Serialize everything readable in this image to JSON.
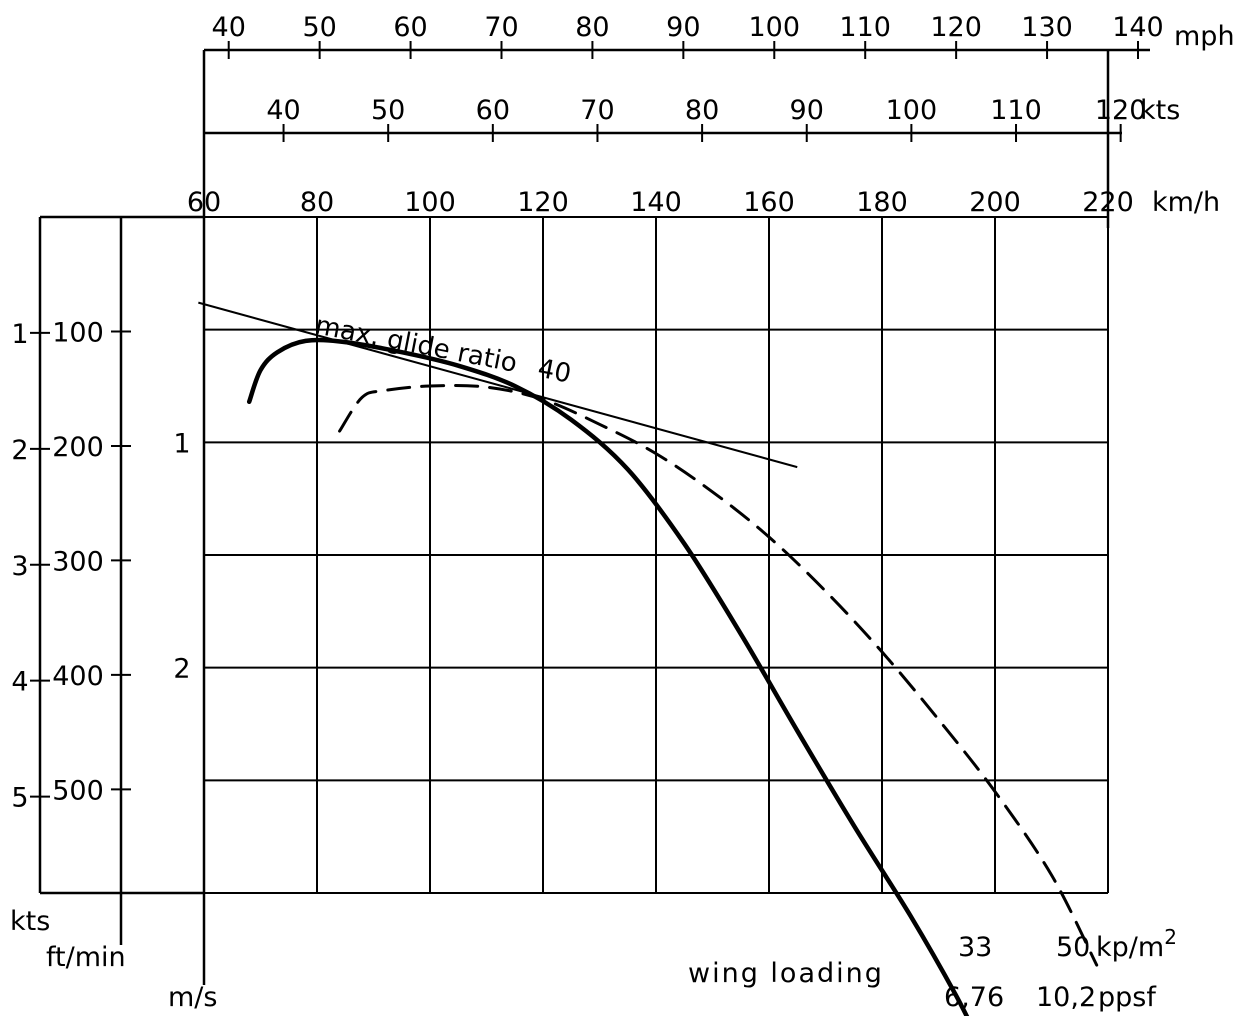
{
  "chart_data": {
    "type": "line",
    "title": "",
    "mph_axis": {
      "ticks": [
        "40",
        "50",
        "60",
        "70",
        "80",
        "90",
        "100",
        "110",
        "120",
        "130",
        "140"
      ],
      "unit": "mph"
    },
    "kts_axis": {
      "ticks": [
        "40",
        "50",
        "60",
        "70",
        "80",
        "90",
        "100",
        "110",
        "120"
      ],
      "unit": "kts"
    },
    "kmh_axis": {
      "ticks": [
        "60",
        "80",
        "100",
        "120",
        "140",
        "160",
        "180",
        "200",
        "220"
      ],
      "unit": "km/h",
      "range": [
        60,
        220
      ]
    },
    "left_axes": {
      "kts": {
        "ticks": [
          "1",
          "2",
          "3",
          "4",
          "5"
        ],
        "unit": "kts"
      },
      "ftmin": {
        "ticks": [
          "100",
          "200",
          "300",
          "400",
          "500"
        ],
        "unit": "ft/min"
      },
      "ms": {
        "ticks": [
          "1",
          "2"
        ],
        "unit": "m/s"
      }
    },
    "y_range_ms": [
      0,
      3.0
    ],
    "glide_line": {
      "label": "max. glide ratio",
      "value_label": "40",
      "points": [
        [
          59,
          0.38
        ],
        [
          165,
          1.11
        ]
      ]
    },
    "series": [
      {
        "style": "solid",
        "points": [
          [
            68,
            0.82
          ],
          [
            70,
            0.68
          ],
          [
            73,
            0.6
          ],
          [
            78,
            0.55
          ],
          [
            85,
            0.555
          ],
          [
            95,
            0.6
          ],
          [
            105,
            0.66
          ],
          [
            115,
            0.75
          ],
          [
            125,
            0.9
          ],
          [
            135,
            1.12
          ],
          [
            145,
            1.45
          ],
          [
            155,
            1.85
          ],
          [
            165,
            2.28
          ],
          [
            175,
            2.7
          ],
          [
            185,
            3.1
          ],
          [
            193,
            3.45
          ],
          [
            197,
            3.65
          ]
        ]
      },
      {
        "style": "dashed",
        "points": [
          [
            84,
            0.95
          ],
          [
            88,
            0.8
          ],
          [
            92,
            0.77
          ],
          [
            100,
            0.75
          ],
          [
            110,
            0.755
          ],
          [
            120,
            0.81
          ],
          [
            130,
            0.92
          ],
          [
            140,
            1.05
          ],
          [
            150,
            1.22
          ],
          [
            160,
            1.42
          ],
          [
            170,
            1.66
          ],
          [
            180,
            1.93
          ],
          [
            190,
            2.23
          ],
          [
            200,
            2.55
          ],
          [
            210,
            2.92
          ],
          [
            218,
            3.32
          ]
        ]
      }
    ],
    "wing_loading": {
      "label": "wing loading",
      "kp_values": [
        "33",
        "50"
      ],
      "kp_unit": "kp/m",
      "kp_unit_sup": "2",
      "ppsf_values": [
        "6,76",
        "10,2"
      ],
      "ppsf_unit": "ppsf"
    }
  }
}
